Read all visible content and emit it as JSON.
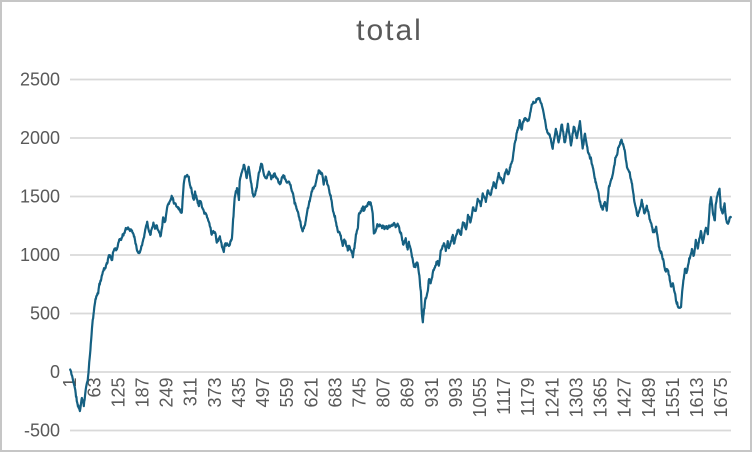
{
  "chart_data": {
    "type": "line",
    "title": "total",
    "legend": false,
    "grid": true,
    "colors": {
      "line": "#156082",
      "gridline": "#D9D9D9",
      "text": "#595959",
      "border": "#C6C6C6",
      "background": "#FFFFFF"
    },
    "y_axis": {
      "min": -500,
      "max": 2500,
      "tick_step": 500,
      "ticks": [
        2500,
        2000,
        1500,
        1000,
        500,
        0,
        -500
      ]
    },
    "x_axis": {
      "tick_step": 62,
      "tick_labels": [
        "1",
        "63",
        "125",
        "187",
        "249",
        "311",
        "373",
        "435",
        "497",
        "559",
        "621",
        "683",
        "745",
        "807",
        "869",
        "931",
        "993",
        "1055",
        "1117",
        "1179",
        "1241",
        "1303",
        "1365",
        "1427",
        "1489",
        "1551",
        "1613",
        "1675"
      ]
    },
    "series": [
      {
        "name": "total",
        "color": "#156082",
        "n_points": 1700,
        "waypoints": [
          [
            1,
            20
          ],
          [
            11,
            -100
          ],
          [
            21,
            -300
          ],
          [
            26,
            -330
          ],
          [
            31,
            -230
          ],
          [
            36,
            -270
          ],
          [
            42,
            -120
          ],
          [
            47,
            -20
          ],
          [
            52,
            150
          ],
          [
            57,
            370
          ],
          [
            65,
            600
          ],
          [
            72,
            670
          ],
          [
            83,
            840
          ],
          [
            91,
            900
          ],
          [
            98,
            970
          ],
          [
            103,
            1010
          ],
          [
            109,
            960
          ],
          [
            114,
            1050
          ],
          [
            121,
            1075
          ],
          [
            127,
            1135
          ],
          [
            134,
            1160
          ],
          [
            140,
            1200
          ],
          [
            147,
            1220
          ],
          [
            155,
            1225
          ],
          [
            163,
            1200
          ],
          [
            168,
            1135
          ],
          [
            176,
            1015
          ],
          [
            181,
            1055
          ],
          [
            189,
            1160
          ],
          [
            194,
            1225
          ],
          [
            199,
            1285
          ],
          [
            207,
            1185
          ],
          [
            215,
            1305
          ],
          [
            219,
            1245
          ],
          [
            224,
            1285
          ],
          [
            229,
            1225
          ],
          [
            234,
            1185
          ],
          [
            240,
            1330
          ],
          [
            245,
            1285
          ],
          [
            250,
            1415
          ],
          [
            258,
            1460
          ],
          [
            262,
            1500
          ],
          [
            270,
            1457
          ],
          [
            280,
            1415
          ],
          [
            288,
            1372
          ],
          [
            293,
            1628
          ],
          [
            296,
            1688
          ],
          [
            306,
            1671
          ],
          [
            309,
            1611
          ],
          [
            314,
            1543
          ],
          [
            319,
            1474
          ],
          [
            322,
            1551
          ],
          [
            332,
            1432
          ],
          [
            334,
            1474
          ],
          [
            345,
            1372
          ],
          [
            352,
            1329
          ],
          [
            358,
            1270
          ],
          [
            365,
            1184
          ],
          [
            373,
            1200
          ],
          [
            378,
            1098
          ],
          [
            386,
            1133
          ],
          [
            396,
            1030
          ],
          [
            399,
            1115
          ],
          [
            409,
            1073
          ],
          [
            417,
            1158
          ],
          [
            424,
            1483
          ],
          [
            430,
            1551
          ],
          [
            435,
            1457
          ],
          [
            437,
            1628
          ],
          [
            448,
            1740
          ],
          [
            455,
            1671
          ],
          [
            460,
            1740
          ],
          [
            468,
            1569
          ],
          [
            473,
            1483
          ],
          [
            481,
            1569
          ],
          [
            486,
            1706
          ],
          [
            494,
            1773
          ],
          [
            502,
            1654
          ],
          [
            512,
            1714
          ],
          [
            517,
            1671
          ],
          [
            527,
            1690
          ],
          [
            537,
            1620
          ],
          [
            547,
            1680
          ],
          [
            557,
            1640
          ],
          [
            566,
            1600
          ],
          [
            576,
            1483
          ],
          [
            586,
            1340
          ],
          [
            599,
            1200
          ],
          [
            607,
            1290
          ],
          [
            615,
            1420
          ],
          [
            625,
            1570
          ],
          [
            633,
            1630
          ],
          [
            641,
            1714
          ],
          [
            648,
            1690
          ],
          [
            653,
            1610
          ],
          [
            658,
            1670
          ],
          [
            663,
            1600
          ],
          [
            671,
            1480
          ],
          [
            676,
            1400
          ],
          [
            684,
            1290
          ],
          [
            689,
            1185
          ],
          [
            697,
            1175
          ],
          [
            702,
            1090
          ],
          [
            705,
            1140
          ],
          [
            715,
            1030
          ],
          [
            718,
            1090
          ],
          [
            728,
            975
          ],
          [
            731,
            1056
          ],
          [
            741,
            1244
          ],
          [
            743,
            1346
          ],
          [
            754,
            1440
          ],
          [
            756,
            1389
          ],
          [
            766,
            1432
          ],
          [
            774,
            1440
          ],
          [
            779,
            1355
          ],
          [
            782,
            1184
          ],
          [
            792,
            1270
          ],
          [
            800,
            1270
          ],
          [
            808,
            1226
          ],
          [
            818,
            1226
          ],
          [
            826,
            1270
          ],
          [
            833,
            1261
          ],
          [
            844,
            1244
          ],
          [
            851,
            1200
          ],
          [
            857,
            1090
          ],
          [
            864,
            1133
          ],
          [
            869,
            1030
          ],
          [
            872,
            1098
          ],
          [
            882,
            970
          ],
          [
            885,
            902
          ],
          [
            895,
            945
          ],
          [
            898,
            842
          ],
          [
            903,
            688
          ],
          [
            905,
            517
          ],
          [
            908,
            420
          ],
          [
            910,
            491
          ],
          [
            915,
            628
          ],
          [
            921,
            688
          ],
          [
            923,
            774
          ],
          [
            928,
            748
          ],
          [
            933,
            833
          ],
          [
            936,
            876
          ],
          [
            946,
            945
          ],
          [
            949,
            885
          ],
          [
            954,
            1030
          ],
          [
            962,
            1090
          ],
          [
            967,
            1030
          ],
          [
            972,
            1141
          ],
          [
            975,
            1056
          ],
          [
            985,
            1175
          ],
          [
            988,
            1115
          ],
          [
            998,
            1226
          ],
          [
            1006,
            1175
          ],
          [
            1011,
            1286
          ],
          [
            1019,
            1226
          ],
          [
            1024,
            1346
          ],
          [
            1031,
            1286
          ],
          [
            1037,
            1397
          ],
          [
            1044,
            1346
          ],
          [
            1049,
            1457
          ],
          [
            1057,
            1397
          ],
          [
            1062,
            1517
          ],
          [
            1070,
            1457
          ],
          [
            1075,
            1569
          ],
          [
            1083,
            1517
          ],
          [
            1090,
            1628
          ],
          [
            1096,
            1569
          ],
          [
            1103,
            1688
          ],
          [
            1114,
            1628
          ],
          [
            1121,
            1740
          ],
          [
            1129,
            1688
          ],
          [
            1134,
            1774
          ],
          [
            1139,
            1830
          ],
          [
            1144,
            1950
          ],
          [
            1150,
            2056
          ],
          [
            1157,
            2141
          ],
          [
            1162,
            2081
          ],
          [
            1170,
            2167
          ],
          [
            1180,
            2115
          ],
          [
            1188,
            2252
          ],
          [
            1196,
            2312
          ],
          [
            1206,
            2360
          ],
          [
            1211,
            2312
          ],
          [
            1216,
            2252
          ],
          [
            1221,
            2167
          ],
          [
            1226,
            2081
          ],
          [
            1234,
            2030
          ],
          [
            1242,
            1911
          ],
          [
            1250,
            2090
          ],
          [
            1257,
            1950
          ],
          [
            1265,
            2110
          ],
          [
            1273,
            1950
          ],
          [
            1281,
            2110
          ],
          [
            1289,
            1930
          ],
          [
            1296,
            2110
          ],
          [
            1304,
            2000
          ],
          [
            1312,
            2126
          ],
          [
            1319,
            1911
          ],
          [
            1325,
            2030
          ],
          [
            1332,
            1880
          ],
          [
            1340,
            1810
          ],
          [
            1348,
            1690
          ],
          [
            1356,
            1590
          ],
          [
            1363,
            1470
          ],
          [
            1371,
            1390
          ],
          [
            1376,
            1450
          ],
          [
            1381,
            1400
          ],
          [
            1386,
            1560
          ],
          [
            1394,
            1671
          ],
          [
            1399,
            1757
          ],
          [
            1404,
            1842
          ],
          [
            1412,
            1930
          ],
          [
            1420,
            1990
          ],
          [
            1427,
            1890
          ],
          [
            1432,
            1780
          ],
          [
            1446,
            1611
          ],
          [
            1453,
            1440
          ],
          [
            1461,
            1330
          ],
          [
            1471,
            1460
          ],
          [
            1477,
            1370
          ],
          [
            1484,
            1440
          ],
          [
            1492,
            1300
          ],
          [
            1500,
            1200
          ],
          [
            1508,
            1230
          ],
          [
            1515,
            1050
          ],
          [
            1523,
            1000
          ],
          [
            1531,
            880
          ],
          [
            1538,
            860
          ],
          [
            1546,
            700
          ],
          [
            1551,
            731
          ],
          [
            1559,
            602
          ],
          [
            1567,
            530
          ],
          [
            1572,
            560
          ],
          [
            1577,
            748
          ],
          [
            1582,
            880
          ],
          [
            1587,
            860
          ],
          [
            1592,
            945
          ],
          [
            1600,
            1060
          ],
          [
            1605,
            1004
          ],
          [
            1610,
            1115
          ],
          [
            1615,
            1030
          ],
          [
            1623,
            1200
          ],
          [
            1628,
            1115
          ],
          [
            1636,
            1226
          ],
          [
            1641,
            1175
          ],
          [
            1646,
            1420
          ],
          [
            1649,
            1483
          ],
          [
            1654,
            1372
          ],
          [
            1659,
            1310
          ],
          [
            1661,
            1432
          ],
          [
            1666,
            1543
          ],
          [
            1671,
            1586
          ],
          [
            1674,
            1432
          ],
          [
            1679,
            1355
          ],
          [
            1684,
            1457
          ],
          [
            1687,
            1346
          ],
          [
            1692,
            1270
          ],
          [
            1697,
            1312
          ],
          [
            1700,
            1320
          ]
        ]
      }
    ]
  },
  "render_hints": {
    "noise_seed": 11,
    "noise_step": 22,
    "noise_decay": 0.88,
    "noise_jitter": 16
  }
}
